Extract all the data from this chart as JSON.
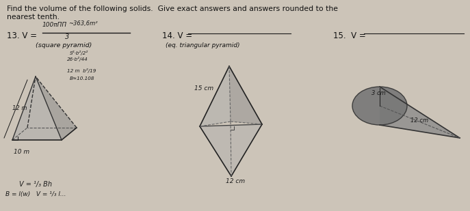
{
  "background_color": "#ccc4b8",
  "title_line1": "Find the volume of the following solids.  Give exact answers and answers rounded to the",
  "title_line2": "nearest tenth.",
  "label13": "13. V =",
  "label14": "14. V =",
  "label15": "15.  V =",
  "sublabel13": "(square pyramid)",
  "sublabel14": "(eq. triangular pyramid)",
  "dim13_height": "12 m",
  "dim13_base": "10 m",
  "dim14_slant": "15 cm",
  "dim14_base": "12 cm",
  "dim15_radius": "3 cm",
  "dim15_length": "12 cm",
  "handwrite_answer13_num": "100πΠΠ",
  "handwrite_answer13_approx": "~363,6m²",
  "handwrite_answer13_den": "3",
  "handwrite_notes": [
    "S²·b²/2²",
    "26·b²/44",
    "12 m  b²/19",
    "B≈10.108"
  ],
  "bottom_note1": "V = ¹/₃ Bh",
  "bottom_note2": "B = l(w)   V = ¹/₃ l...",
  "text_color": "#111111",
  "handwrite_color": "#1a1a1a"
}
